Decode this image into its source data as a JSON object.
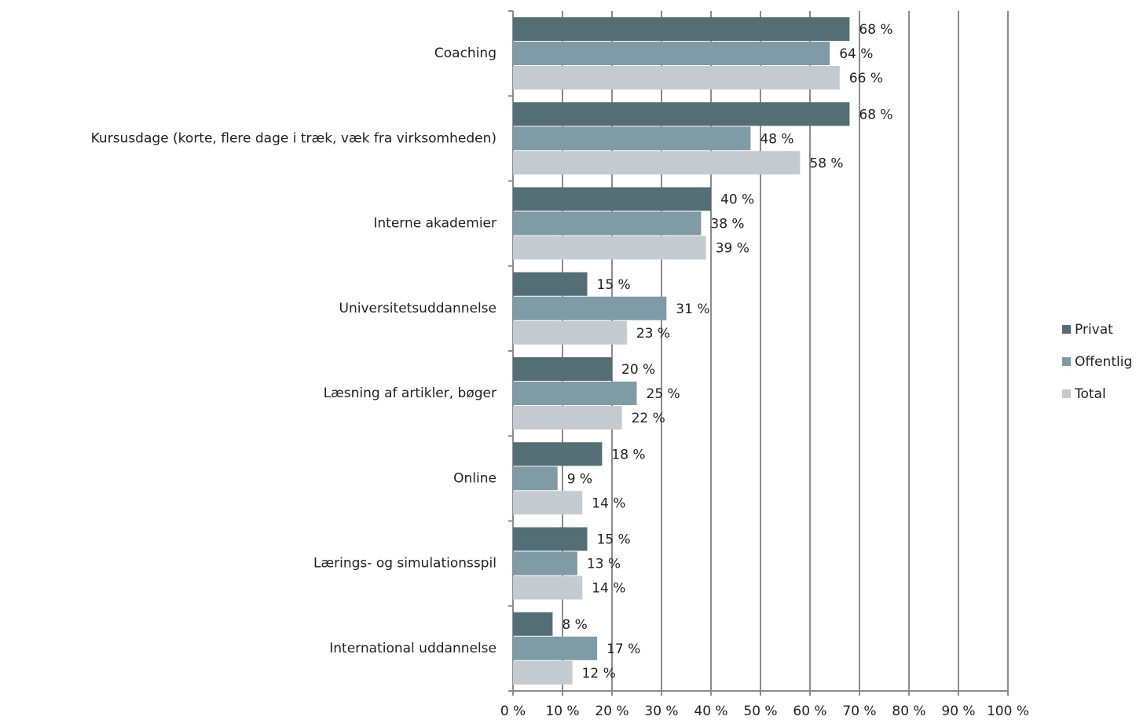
{
  "chart_data": {
    "type": "hbar",
    "categories": [
      "Coaching",
      "Kursusdage (korte, flere dage i træk, væk fra virksomheden)",
      "Interne akademier",
      "Universitetsuddannelse",
      "Læsning af artikler, bøger",
      "Online",
      "Lærings- og simulationsspil",
      "International uddannelse"
    ],
    "series": [
      {
        "name": "Privat",
        "color": "#546e75",
        "values": [
          68,
          68,
          40,
          15,
          20,
          18,
          15,
          8
        ],
        "value_labels": [
          "68 %",
          "68 %",
          "40 %",
          "15 %",
          "20 %",
          "18 %",
          "15 %",
          "8 %"
        ]
      },
      {
        "name": "Offentlig",
        "color": "#7f9ba5",
        "values": [
          64,
          48,
          38,
          31,
          25,
          9,
          13,
          17
        ],
        "value_labels": [
          "64 %",
          "48 %",
          "38 %",
          "31 %",
          "25 %",
          "9 %",
          "13 %",
          "17 %"
        ]
      },
      {
        "name": "Total",
        "color": "#c3cbd0",
        "values": [
          66,
          58,
          39,
          23,
          22,
          14,
          14,
          12
        ],
        "value_labels": [
          "66 %",
          "58 %",
          "39 %",
          "23 %",
          "22 %",
          "14 %",
          "14 %",
          "12 %"
        ]
      }
    ],
    "xlim": [
      0,
      100
    ],
    "xticks": [
      {
        "value": 0,
        "label": "0 %"
      },
      {
        "value": 10,
        "label": "10 %"
      },
      {
        "value": 20,
        "label": "20 %"
      },
      {
        "value": 30,
        "label": "30 %"
      },
      {
        "value": 40,
        "label": "40 %"
      },
      {
        "value": 50,
        "label": "50 %"
      },
      {
        "value": 60,
        "label": "60 %"
      },
      {
        "value": 70,
        "label": "70 %"
      },
      {
        "value": 80,
        "label": "80 %"
      },
      {
        "value": 90,
        "label": "90 %"
      },
      {
        "value": 100,
        "label": "100 %"
      }
    ],
    "grid": true,
    "legend": "right"
  }
}
